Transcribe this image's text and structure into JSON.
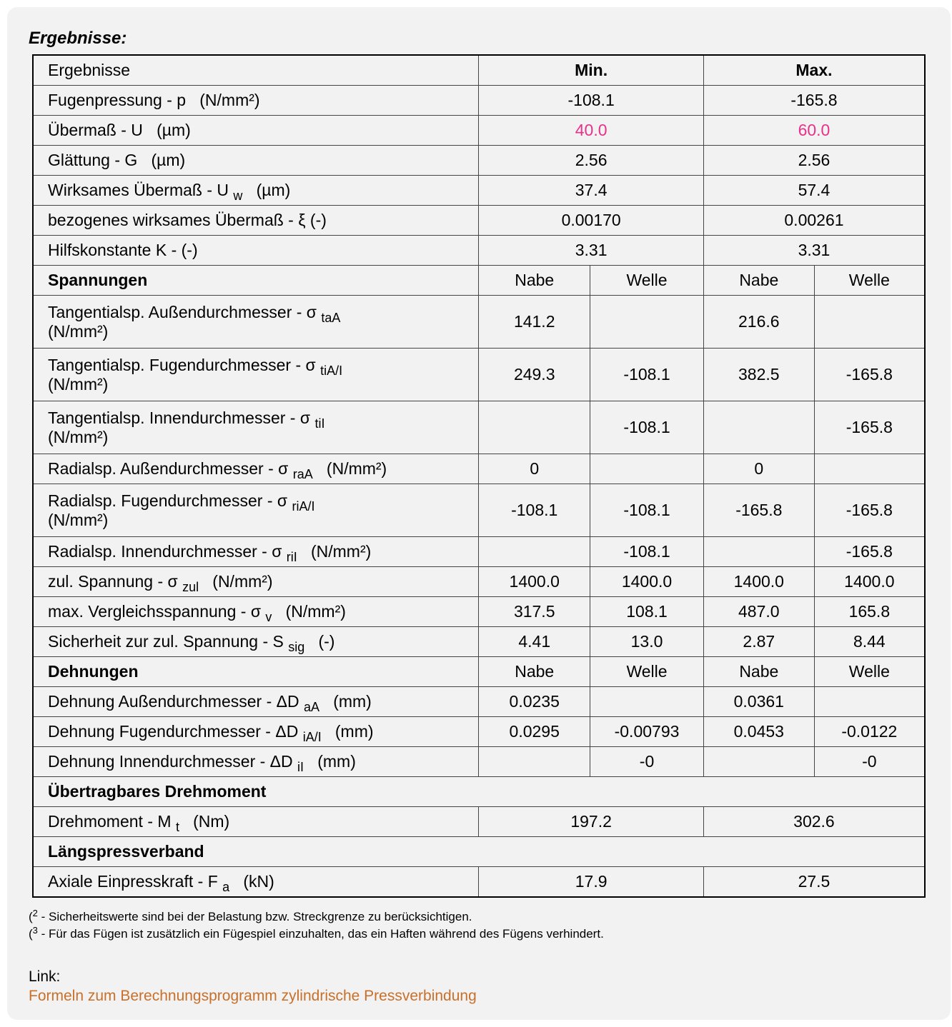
{
  "title": "Ergebnisse:",
  "colors": {
    "highlight": "#e8318a",
    "link": "#c8702a"
  },
  "header": {
    "label": "Ergebnisse",
    "min": "Min.",
    "max": "Max."
  },
  "rows": [
    {
      "type": "pair",
      "label": "Fugenpressung - p",
      "sub": "",
      "unit": "(N/mm²)",
      "values": [
        "-108.1",
        "-165.8"
      ]
    },
    {
      "type": "pair",
      "label": "Übermaß - U",
      "sub": "",
      "unit": "(µm)",
      "values": [
        "40.0",
        "60.0"
      ],
      "highlight": true
    },
    {
      "type": "pair",
      "label": "Glättung - G",
      "sub": "",
      "unit": "(µm)",
      "values": [
        "2.56",
        "2.56"
      ]
    },
    {
      "type": "pair",
      "label": "Wirksames Übermaß - U",
      "sub": "w",
      "unit": "(µm)",
      "values": [
        "37.4",
        "57.4"
      ]
    },
    {
      "type": "pair",
      "label": "bezogenes wirksames Übermaß - ξ (-)",
      "sub": "",
      "unit": "",
      "values": [
        "0.00170",
        "0.00261"
      ]
    },
    {
      "type": "pair",
      "label": "Hilfskonstante K - (-)",
      "sub": "",
      "unit": "",
      "values": [
        "3.31",
        "3.31"
      ]
    },
    {
      "type": "section4",
      "label": "Spannungen",
      "values": [
        "Nabe",
        "Welle",
        "Nabe",
        "Welle"
      ]
    },
    {
      "type": "quad",
      "label": "Tangentialsp. Außendurchmesser - σ",
      "sub": "taA",
      "unit": "(N/mm²)",
      "wrap": true,
      "values": [
        "141.2",
        "",
        "216.6",
        ""
      ]
    },
    {
      "type": "quad",
      "label": "Tangentialsp. Fugendurchmesser - σ",
      "sub": "tiA/I",
      "unit": "(N/mm²)",
      "wrap": true,
      "values": [
        "249.3",
        "-108.1",
        "382.5",
        "-165.8"
      ]
    },
    {
      "type": "quad",
      "label": "Tangentialsp. Innendurchmesser - σ",
      "sub": "tiI",
      "unit": "(N/mm²)",
      "wrap": true,
      "values": [
        "",
        "-108.1",
        "",
        "-165.8"
      ]
    },
    {
      "type": "quad",
      "label": "Radialsp. Außendurchmesser - σ",
      "sub": "raA",
      "unit": "(N/mm²)",
      "values": [
        "0",
        "",
        "0",
        ""
      ]
    },
    {
      "type": "quad",
      "label": "Radialsp. Fugendurchmesser - σ",
      "sub": "riA/I",
      "unit": "(N/mm²)",
      "wrap": true,
      "values": [
        "-108.1",
        "-108.1",
        "-165.8",
        "-165.8"
      ]
    },
    {
      "type": "quad",
      "label": "Radialsp. Innendurchmesser - σ",
      "sub": "riI",
      "unit": "(N/mm²)",
      "values": [
        "",
        "-108.1",
        "",
        "-165.8"
      ]
    },
    {
      "type": "quad",
      "label": "zul. Spannung - σ",
      "sub": "zul",
      "unit": "(N/mm²)",
      "values": [
        "1400.0",
        "1400.0",
        "1400.0",
        "1400.0"
      ]
    },
    {
      "type": "quad",
      "label": "max. Vergleichsspannung - σ",
      "sub": "v",
      "unit": "(N/mm²)",
      "values": [
        "317.5",
        "108.1",
        "487.0",
        "165.8"
      ]
    },
    {
      "type": "quad",
      "label": "Sicherheit zur zul. Spannung - S",
      "sub": "sig",
      "unit": "(-)",
      "values": [
        "4.41",
        "13.0",
        "2.87",
        "8.44"
      ]
    },
    {
      "type": "section4",
      "label": "Dehnungen",
      "values": [
        "Nabe",
        "Welle",
        "Nabe",
        "Welle"
      ]
    },
    {
      "type": "quad",
      "label": "Dehnung Außendurchmesser - ΔD",
      "sub": "aA",
      "unit": "(mm)",
      "values": [
        "0.0235",
        "",
        "0.0361",
        ""
      ]
    },
    {
      "type": "quad",
      "label": "Dehnung Fugendurchmesser - ΔD",
      "sub": "iA/I",
      "unit": "(mm)",
      "values": [
        "0.0295",
        "-0.00793",
        "0.0453",
        "-0.0122"
      ]
    },
    {
      "type": "quad",
      "label": "Dehnung Innendurchmesser - ΔD",
      "sub": "iI",
      "unit": "(mm)",
      "values": [
        "",
        "-0",
        "",
        "-0"
      ]
    },
    {
      "type": "section",
      "label": "Übertragbares Drehmoment"
    },
    {
      "type": "pair",
      "label": "Drehmoment - M",
      "sub": "t",
      "unit": "(Nm)",
      "values": [
        "197.2",
        "302.6"
      ]
    },
    {
      "type": "section",
      "label": "Längspressverband"
    },
    {
      "type": "pair",
      "label": "Axiale Einpresskraft - F",
      "sub": "a",
      "unit": "(kN)",
      "values": [
        "17.9",
        "27.5"
      ]
    }
  ],
  "notes": [
    {
      "mark": "2",
      "text": " - Sicherheitswerte sind bei der Belastung bzw. Streckgrenze zu berücksichtigen."
    },
    {
      "mark": "3",
      "text": " - Für das Fügen ist zusätzlich ein Fügespiel einzuhalten, das ein Haften während des Fügens verhindert."
    }
  ],
  "link_label": "Link:",
  "link_text": "Formeln zum Berechnungsprogramm zylindrische Pressverbindung"
}
